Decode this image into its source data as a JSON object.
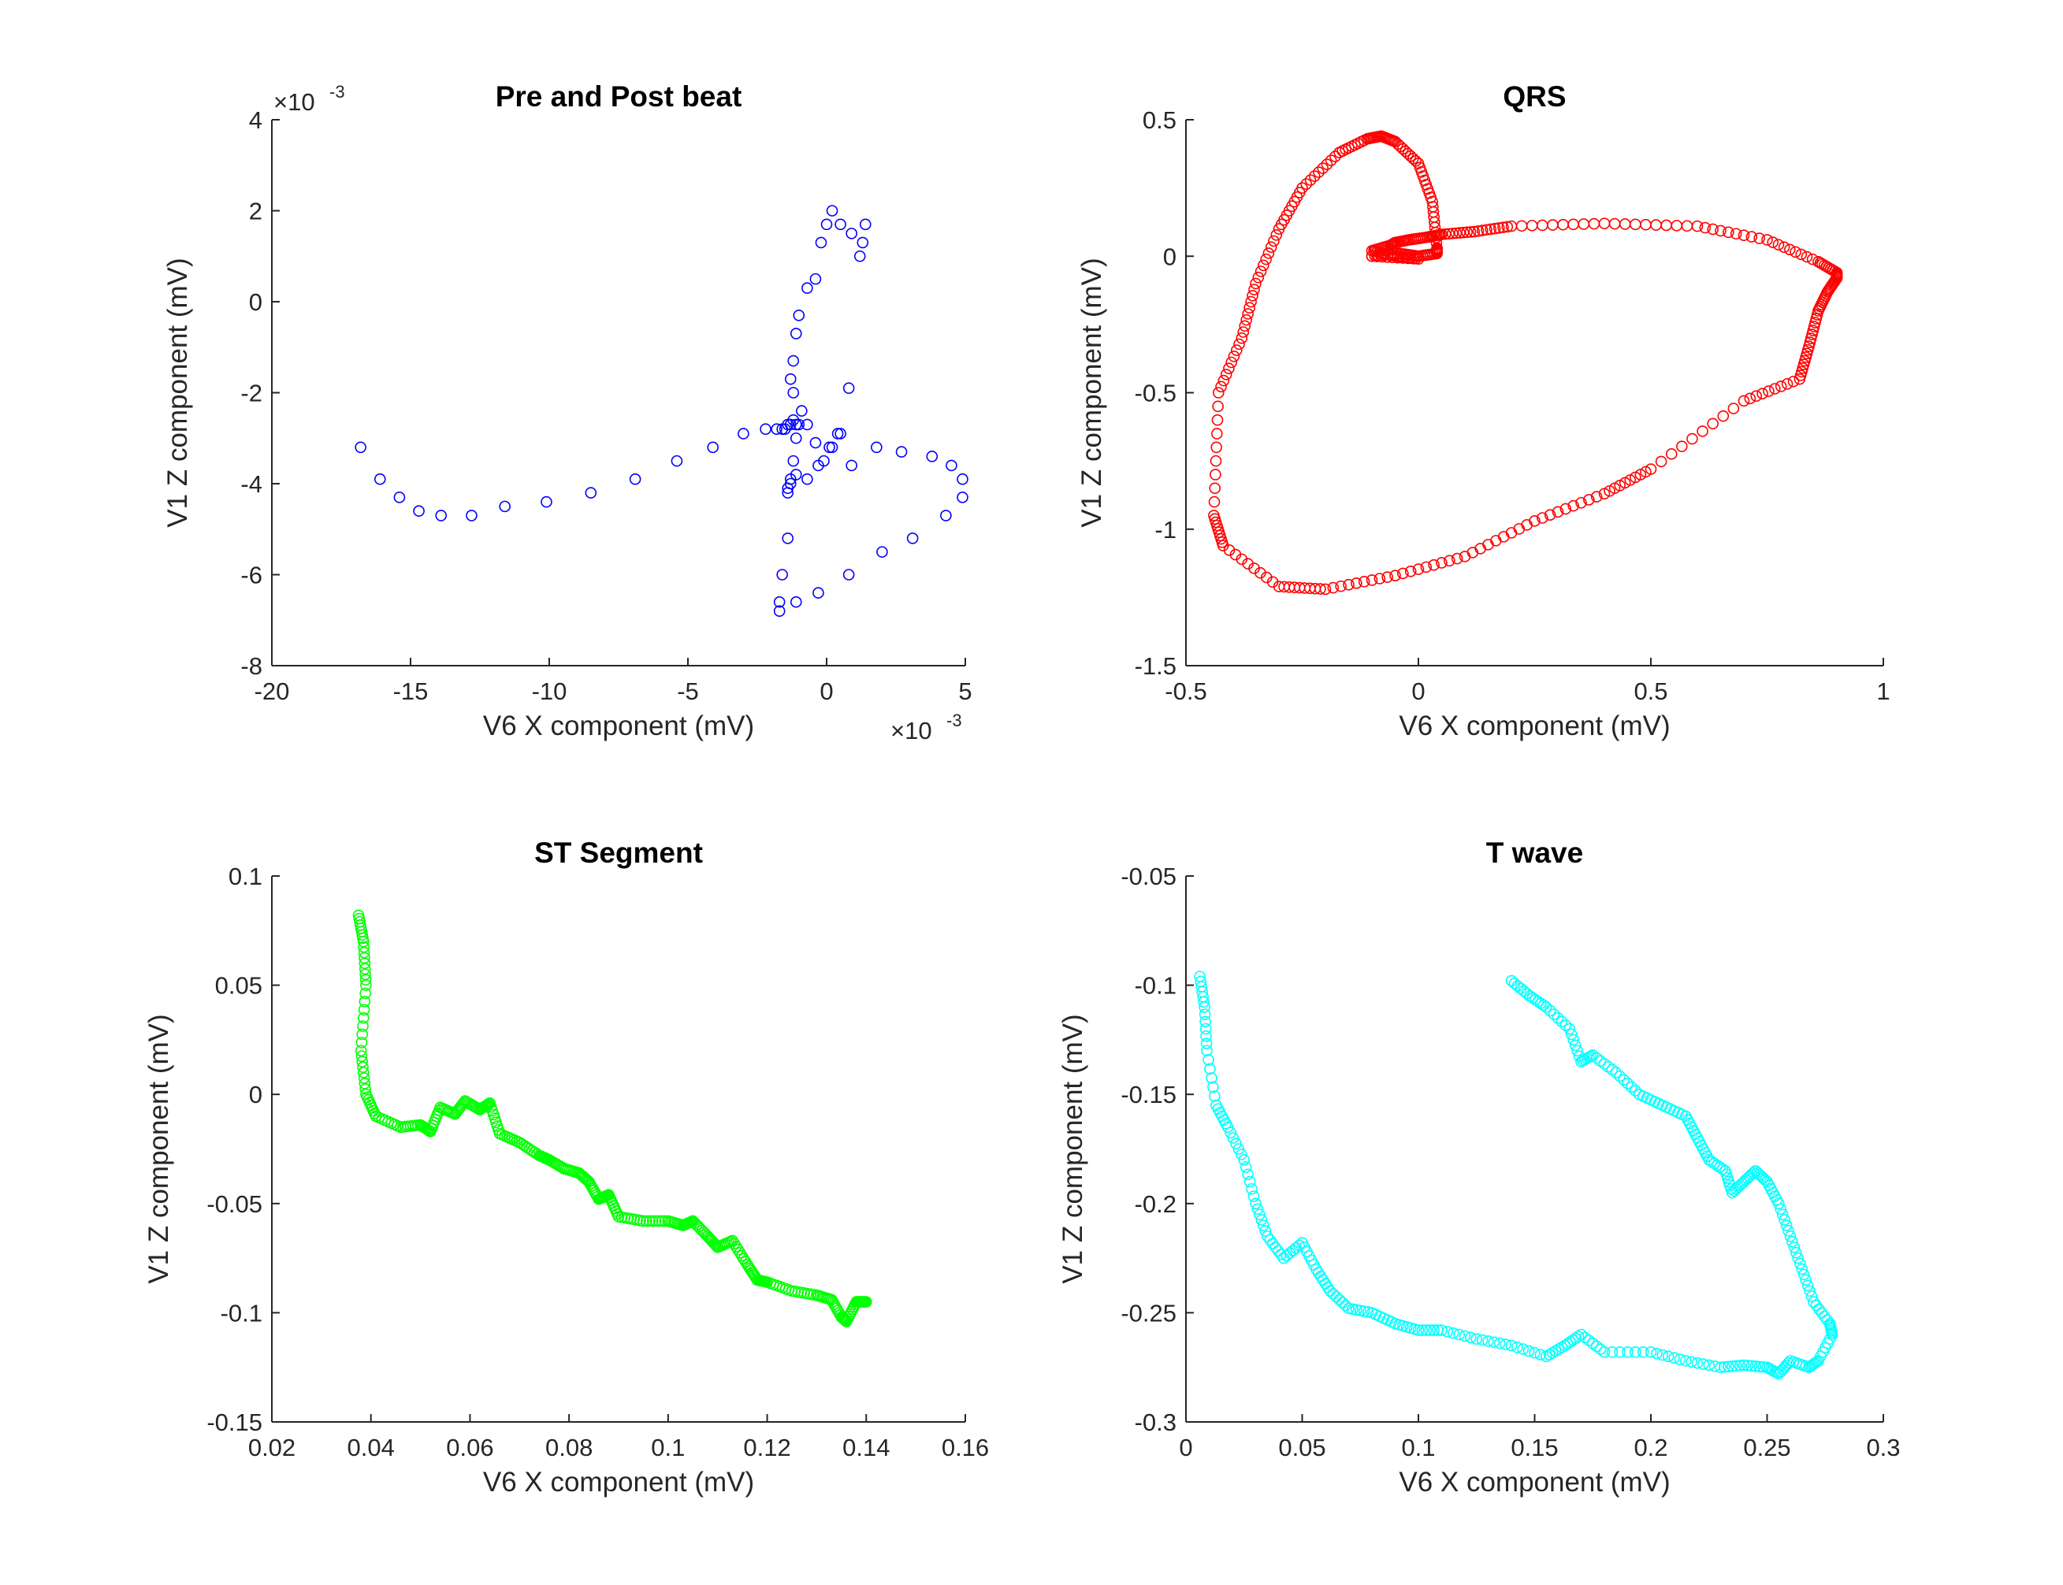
{
  "chart_data": [
    {
      "type": "scatter",
      "title": "Pre and Post beat",
      "xlabel": "V6 X component (mV)",
      "ylabel": "V1 Z component (mV)",
      "color": "#0000ff",
      "xlim": [
        -0.02,
        0.005
      ],
      "ylim": [
        -0.008,
        0.004
      ],
      "xticks": [
        -0.02,
        -0.015,
        -0.01,
        -0.005,
        0,
        0.005
      ],
      "yticks": [
        -0.008,
        -0.006,
        -0.004,
        -0.002,
        0,
        0.002,
        0.004
      ],
      "xtick_labels": [
        "-20",
        "-15",
        "-10",
        "-5",
        "0",
        "5"
      ],
      "ytick_labels": [
        "-8",
        "-6",
        "-4",
        "-2",
        "0",
        "2",
        "4"
      ],
      "x_exponent": {
        "base": "×10",
        "power": "-3"
      },
      "y_exponent": {
        "base": "×10",
        "power": "-3"
      },
      "x": [
        -0.0168,
        -0.0161,
        -0.0154,
        -0.0147,
        -0.0139,
        -0.0128,
        -0.0116,
        -0.0101,
        -0.0085,
        -0.0069,
        -0.0054,
        -0.0041,
        -0.003,
        -0.0022,
        -0.0018,
        -0.0016,
        -0.0015,
        -0.0014,
        -0.0013,
        -0.0012,
        -0.0011,
        -0.001,
        -0.0011,
        -0.0012,
        -0.0013,
        -0.0014,
        -0.0014,
        -0.0013,
        -0.0011,
        -0.0007,
        -0.0003,
        0.0001,
        0.0004,
        0.0008,
        0.0012,
        0.0014,
        0.0013,
        0.0009,
        0.0005,
        0.0002,
        0.0,
        -0.0002,
        -0.0004,
        -0.0007,
        -0.001,
        -0.0011,
        -0.0012,
        -0.0013,
        -0.0012,
        -0.0009,
        -0.0007,
        -0.0004,
        -0.0001,
        0.0002,
        0.0005,
        0.0009,
        0.0018,
        0.0027,
        0.0038,
        0.0045,
        0.0049,
        0.0049,
        0.0043,
        0.0031,
        0.002,
        0.0008,
        -0.0003,
        -0.0011,
        -0.0014,
        -0.0016,
        -0.0017,
        -0.0017
      ],
      "y": [
        -0.0032,
        -0.0039,
        -0.0043,
        -0.0046,
        -0.0047,
        -0.0047,
        -0.0045,
        -0.0044,
        -0.0042,
        -0.0039,
        -0.0035,
        -0.0032,
        -0.0029,
        -0.0028,
        -0.0028,
        -0.0028,
        -0.0028,
        -0.0027,
        -0.0027,
        -0.0026,
        -0.0027,
        -0.0027,
        -0.003,
        -0.0035,
        -0.0039,
        -0.0041,
        -0.0042,
        -0.004,
        -0.0038,
        -0.0039,
        -0.0036,
        -0.0032,
        -0.0029,
        -0.0019,
        0.001,
        0.0017,
        0.0013,
        0.0015,
        0.0017,
        0.002,
        0.0017,
        0.0013,
        0.0005,
        0.0003,
        -0.0003,
        -0.0007,
        -0.0013,
        -0.0017,
        -0.002,
        -0.0024,
        -0.0027,
        -0.0031,
        -0.0035,
        -0.0032,
        -0.0029,
        -0.0036,
        -0.0032,
        -0.0033,
        -0.0034,
        -0.0036,
        -0.0039,
        -0.0043,
        -0.0047,
        -0.0052,
        -0.0055,
        -0.006,
        -0.0064,
        -0.0066,
        -0.0052,
        -0.006,
        -0.0066,
        -0.0068
      ]
    },
    {
      "type": "scatter",
      "title": "QRS",
      "xlabel": "V6 X component (mV)",
      "ylabel": "V1 Z component (mV)",
      "color": "#ff0000",
      "xlim": [
        -0.5,
        1
      ],
      "ylim": [
        -1.5,
        0.5
      ],
      "xticks": [
        -0.5,
        0,
        0.5,
        1
      ],
      "yticks": [
        -1.5,
        -1,
        -0.5,
        0,
        0.5
      ],
      "xtick_labels": [
        "-0.5",
        "0",
        "0.5",
        "1"
      ],
      "ytick_labels": [
        "-1.5",
        "-1",
        "-0.5",
        "0",
        "0.5"
      ],
      "path_anchors": {
        "x": [
          -0.1,
          -0.04,
          0.0,
          0.04,
          0.04,
          0.03,
          0.0,
          -0.05,
          -0.08,
          -0.11,
          -0.17,
          -0.25,
          -0.3,
          -0.35,
          -0.38,
          -0.43,
          -0.44,
          -0.42,
          -0.3,
          -0.2,
          -0.05,
          0.1,
          0.25,
          0.4,
          0.5,
          0.7,
          0.82,
          0.84,
          0.86,
          0.88,
          0.9,
          0.9,
          0.86,
          0.75,
          0.6,
          0.4,
          0.2,
          0.12,
          0.05,
          0.02,
          -0.02,
          -0.05,
          -0.06,
          -0.1,
          -0.05,
          0.0,
          -0.1
        ],
        "y": [
          0.0,
          0.01,
          0.0,
          0.01,
          0.03,
          0.2,
          0.34,
          0.42,
          0.44,
          0.43,
          0.38,
          0.25,
          0.1,
          -0.1,
          -0.3,
          -0.5,
          -0.95,
          -1.06,
          -1.21,
          -1.22,
          -1.17,
          -1.1,
          -0.97,
          -0.87,
          -0.78,
          -0.53,
          -0.45,
          -0.33,
          -0.2,
          -0.13,
          -0.08,
          -0.06,
          -0.02,
          0.06,
          0.11,
          0.12,
          0.11,
          0.09,
          0.08,
          0.07,
          0.06,
          0.05,
          0.04,
          0.02,
          0.0,
          -0.01,
          0.0
        ]
      },
      "points_per_segment": 9
    },
    {
      "type": "scatter",
      "title": "ST Segment",
      "xlabel": "V6 X component (mV)",
      "ylabel": "V1 Z component (mV)",
      "color": "#00ff00",
      "xlim": [
        0.02,
        0.16
      ],
      "ylim": [
        -0.15,
        0.1
      ],
      "xticks": [
        0.02,
        0.04,
        0.06,
        0.08,
        0.1,
        0.12,
        0.14,
        0.16
      ],
      "yticks": [
        -0.15,
        -0.1,
        -0.05,
        0,
        0.05,
        0.1
      ],
      "xtick_labels": [
        "0.02",
        "0.04",
        "0.06",
        "0.08",
        "0.1",
        "0.12",
        "0.14",
        "0.16"
      ],
      "ytick_labels": [
        "-0.15",
        "-0.1",
        "-0.05",
        "0",
        "0.05",
        "0.1"
      ],
      "path_anchors": {
        "x": [
          0.0375,
          0.0385,
          0.039,
          0.038,
          0.039,
          0.041,
          0.046,
          0.05,
          0.052,
          0.054,
          0.057,
          0.059,
          0.062,
          0.064,
          0.066,
          0.07,
          0.074,
          0.076,
          0.079,
          0.082,
          0.084,
          0.086,
          0.088,
          0.09,
          0.095,
          0.1,
          0.103,
          0.105,
          0.108,
          0.11,
          0.113,
          0.116,
          0.118,
          0.12,
          0.125,
          0.13,
          0.133,
          0.135,
          0.136,
          0.138,
          0.14
        ],
        "y": [
          0.082,
          0.07,
          0.05,
          0.02,
          0.0,
          -0.01,
          -0.015,
          -0.014,
          -0.017,
          -0.006,
          -0.009,
          -0.003,
          -0.007,
          -0.004,
          -0.018,
          -0.022,
          -0.028,
          -0.03,
          -0.034,
          -0.036,
          -0.04,
          -0.048,
          -0.046,
          -0.056,
          -0.058,
          -0.058,
          -0.06,
          -0.058,
          -0.065,
          -0.07,
          -0.067,
          -0.078,
          -0.085,
          -0.086,
          -0.09,
          -0.092,
          -0.094,
          -0.102,
          -0.104,
          -0.095,
          -0.095
        ]
      },
      "points_per_segment": 8
    },
    {
      "type": "scatter",
      "title": "T wave",
      "xlabel": "V6 X component (mV)",
      "ylabel": "V1 Z component (mV)",
      "color": "#00ffff",
      "xlim": [
        0,
        0.3
      ],
      "ylim": [
        -0.3,
        -0.05
      ],
      "xticks": [
        0,
        0.05,
        0.1,
        0.15,
        0.2,
        0.25,
        0.3
      ],
      "yticks": [
        -0.3,
        -0.25,
        -0.2,
        -0.15,
        -0.1,
        -0.05
      ],
      "xtick_labels": [
        "0",
        "0.05",
        "0.1",
        "0.15",
        "0.2",
        "0.25",
        "0.3"
      ],
      "ytick_labels": [
        "-0.3",
        "-0.25",
        "-0.2",
        "-0.15",
        "-0.1",
        "-0.05"
      ],
      "path_anchors": {
        "x": [
          0.006,
          0.008,
          0.009,
          0.013,
          0.018,
          0.025,
          0.03,
          0.035,
          0.042,
          0.05,
          0.056,
          0.062,
          0.07,
          0.08,
          0.09,
          0.1,
          0.11,
          0.125,
          0.14,
          0.155,
          0.163,
          0.17,
          0.18,
          0.2,
          0.215,
          0.23,
          0.24,
          0.25,
          0.255,
          0.26,
          0.268,
          0.272,
          0.278,
          0.277,
          0.27,
          0.265,
          0.26,
          0.255,
          0.25,
          0.245,
          0.24,
          0.235,
          0.232,
          0.225,
          0.22,
          0.215,
          0.205,
          0.195,
          0.185,
          0.175,
          0.17,
          0.165,
          0.155,
          0.148,
          0.14
        ],
        "y": [
          -0.096,
          -0.11,
          -0.13,
          -0.155,
          -0.165,
          -0.18,
          -0.2,
          -0.215,
          -0.225,
          -0.218,
          -0.23,
          -0.24,
          -0.248,
          -0.25,
          -0.255,
          -0.258,
          -0.258,
          -0.262,
          -0.265,
          -0.27,
          -0.265,
          -0.26,
          -0.268,
          -0.268,
          -0.272,
          -0.275,
          -0.274,
          -0.275,
          -0.278,
          -0.272,
          -0.275,
          -0.272,
          -0.26,
          -0.255,
          -0.245,
          -0.23,
          -0.215,
          -0.2,
          -0.19,
          -0.185,
          -0.19,
          -0.195,
          -0.185,
          -0.18,
          -0.17,
          -0.16,
          -0.155,
          -0.15,
          -0.14,
          -0.132,
          -0.135,
          -0.12,
          -0.11,
          -0.105,
          -0.098
        ]
      },
      "points_per_segment": 6
    }
  ]
}
